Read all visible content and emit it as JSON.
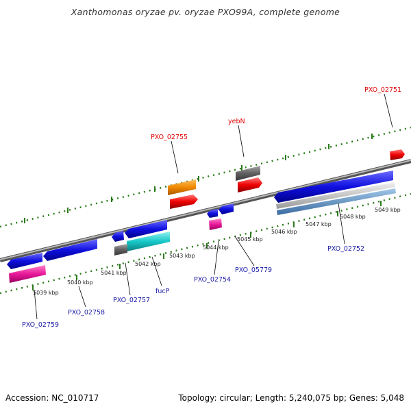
{
  "title": "Xanthomonas oryzae pv. oryzae PXO99A, complete genome",
  "footer": {
    "accession": "Accession: NC_010717",
    "summary": "Topology: circular; Length: 5,240,075 bp; Genes: 5,048"
  },
  "kbp_labels": [
    "5039 kbp",
    "5040 kbp",
    "5041 kbp",
    "5042 kbp",
    "5043 kbp",
    "5044 kbp",
    "5045 kbp",
    "5046 kbp",
    "5047 kbp",
    "5048 kbp",
    "5049 kbp"
  ],
  "gene_labels": {
    "pxo_02751": "PXO_02751",
    "yebn": "yebN",
    "pxo_02755": "PXO_02755",
    "pxo_02759": "PXO_02759",
    "pxo_02758": "PXO_02758",
    "pxo_02757": "PXO_02757",
    "fucp": "fucP",
    "pxo_02754": "PXO_02754",
    "pxo_05779": "PXO_05779",
    "pxo_02752": "PXO_02752"
  },
  "colors": {
    "backbone": "#808080",
    "ruler": "#2a7a1a",
    "blue_gene": "#1010e0",
    "red_gene": "#ee0000",
    "orange_gene": "#f08800",
    "gray_gene": "#606060",
    "pink_gene": "#e8189a",
    "cyan_gene": "#18c8c8",
    "label_red": "#e00000",
    "label_blue": "#1a1aa8"
  }
}
